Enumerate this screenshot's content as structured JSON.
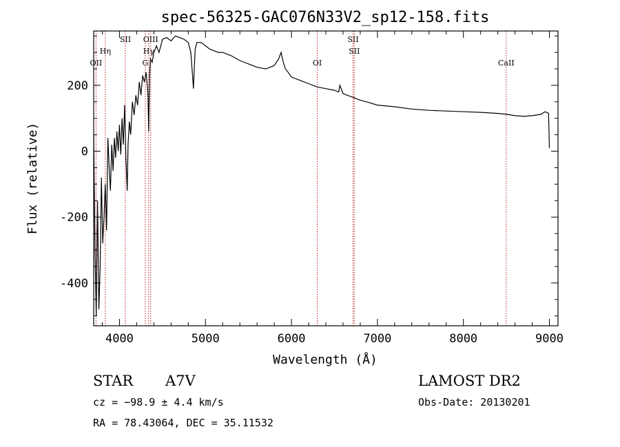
{
  "chart_data": {
    "type": "line",
    "title": "spec-56325-GAC076N33V2_sp12-158.fits",
    "xlabel": "Wavelength (Å)",
    "ylabel": "Flux (relative)",
    "xlim": [
      3700,
      9100
    ],
    "ylim": [
      -530,
      365
    ],
    "xticks": [
      4000,
      5000,
      6000,
      7000,
      8000,
      9000
    ],
    "yticks": [
      -400,
      -200,
      0,
      200
    ],
    "grid": false,
    "series": [
      {
        "color": "#000000",
        "x": [
          3700,
          3715,
          3730,
          3745,
          3760,
          3775,
          3790,
          3805,
          3820,
          3835,
          3850,
          3865,
          3880,
          3895,
          3910,
          3925,
          3940,
          3955,
          3970,
          3985,
          4000,
          4015,
          4030,
          4045,
          4060,
          4075,
          4090,
          4100,
          4115,
          4130,
          4150,
          4170,
          4190,
          4210,
          4230,
          4250,
          4270,
          4290,
          4310,
          4330,
          4340,
          4350,
          4360,
          4380,
          4400,
          4430,
          4460,
          4500,
          4550,
          4600,
          4650,
          4700,
          4750,
          4800,
          4830,
          4850,
          4860,
          4870,
          4880,
          4900,
          4950,
          5000,
          5050,
          5100,
          5150,
          5200,
          5300,
          5400,
          5500,
          5600,
          5700,
          5800,
          5850,
          5880,
          5900,
          5930,
          5960,
          6000,
          6100,
          6200,
          6300,
          6400,
          6500,
          6550,
          6563,
          6600,
          6650,
          6700,
          6800,
          6900,
          7000,
          7200,
          7400,
          7600,
          7800,
          8000,
          8200,
          8400,
          8500,
          8600,
          8700,
          8800,
          8900,
          8950,
          8990,
          9000
        ],
        "y": [
          50,
          -300,
          -500,
          -150,
          -480,
          -350,
          -80,
          -280,
          -200,
          -100,
          -240,
          40,
          -50,
          -120,
          20,
          -60,
          40,
          -20,
          60,
          0,
          80,
          -10,
          100,
          20,
          140,
          -20,
          -120,
          20,
          90,
          50,
          150,
          110,
          170,
          140,
          210,
          170,
          230,
          210,
          240,
          180,
          60,
          230,
          280,
          270,
          300,
          320,
          300,
          340,
          345,
          335,
          350,
          345,
          340,
          330,
          300,
          230,
          190,
          250,
          310,
          330,
          330,
          320,
          310,
          305,
          300,
          300,
          290,
          275,
          265,
          255,
          250,
          260,
          280,
          300,
          275,
          250,
          240,
          225,
          215,
          205,
          195,
          190,
          185,
          180,
          200,
          175,
          170,
          165,
          155,
          148,
          140,
          135,
          128,
          124,
          122,
          120,
          118,
          115,
          112,
          108,
          106,
          108,
          112,
          120,
          115,
          10
        ]
      }
    ],
    "vlines": [
      {
        "x": 3727,
        "label": "OII"
      },
      {
        "x": 3835,
        "label": "Hη"
      },
      {
        "x": 4068,
        "label": "SII"
      },
      {
        "x": 4300,
        "label": "G"
      },
      {
        "x": 4340,
        "label": "Hγ"
      },
      {
        "x": 4363,
        "label": "OIII"
      },
      {
        "x": 6300,
        "label": "OI"
      },
      {
        "x": 6717,
        "label": "SII"
      },
      {
        "x": 6731,
        "label": "SII"
      },
      {
        "x": 8498,
        "label": "CaII"
      }
    ]
  },
  "info": {
    "obj_class": "STAR",
    "subclass": "A7V",
    "cz": "cz = −98.9 ± 4.4 km/s",
    "coords": "RA =  78.43064, DEC =  35.11532",
    "survey": "LAMOST DR2",
    "obs_date": "Obs-Date: 20130201"
  }
}
